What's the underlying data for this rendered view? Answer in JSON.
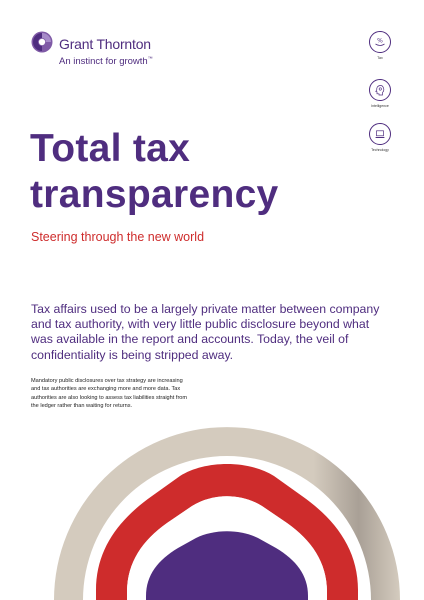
{
  "brand": {
    "name": "Grant Thornton",
    "tagline": "An instinct for growth",
    "trademark": "™",
    "colors": {
      "purple": "#4f2d7f",
      "red": "#ce2c2c",
      "beige": "#d4cbbe"
    }
  },
  "side_icons": [
    {
      "icon": "tax-percent-icon",
      "label": "Tax"
    },
    {
      "icon": "intelligence-head-icon",
      "label": "Intelligence"
    },
    {
      "icon": "technology-laptop-icon",
      "label": "Technology"
    }
  ],
  "title_lines": [
    "Total tax",
    "transparency"
  ],
  "subtitle": "Steering through the new world",
  "lead_lines": [
    "Tax affairs used to be a largely private matter between company",
    "and tax authority, with very little public disclosure beyond what",
    "was available in the report and accounts. Today, the veil of",
    "confidentiality is being stripped away."
  ],
  "body_lines": [
    "Mandatory public disclosures over tax strategy are increasing",
    "and tax authorities are exchanging more and more data. Tax",
    "authorities are also looking to assess tax liabilities straight from",
    "the ledger rather than waiting for returns."
  ]
}
